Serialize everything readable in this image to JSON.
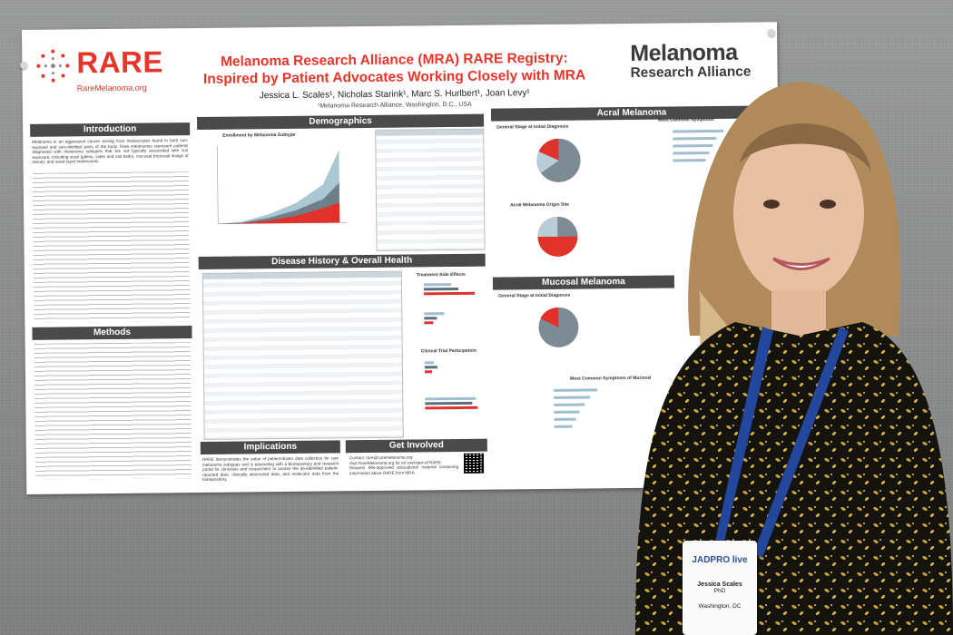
{
  "poster": {
    "logo_left": "RARE",
    "logo_left_url": "RareMelanoma.org",
    "title_line1": "Melanoma Research Alliance (MRA) RARE Registry:",
    "title_line2": "Inspired by Patient Advocates Working Closely with MRA",
    "authors": "Jessica L. Scales¹, Nicholas Starink¹, Marc S. Hurlbert¹, Joan Levy¹",
    "affiliation": "¹Melanoma Research Alliance, Washington, D.C., USA",
    "logo_right_line1": "Melanoma",
    "logo_right_line2": "Research Alliance",
    "sections": {
      "introduction": "Introduction",
      "methods": "Methods",
      "demographics": "Demographics",
      "disease_history": "Disease History & Overall Health",
      "implications": "Implications",
      "get_involved": "Get Involved",
      "acral": "Acral Melanoma",
      "mucosal": "Mucosal Melanoma"
    },
    "subheads": {
      "enrollment": "Enrollment by Melanoma Subtype",
      "treatment_side_effects": "Treatment Side Effects",
      "clinical_trial": "Clinical Trial Participation",
      "acral_stage": "General Stage at Initial Diagnosis",
      "acral_origin": "Acral Melanoma Origin Site",
      "acral_symptoms": "Most Common Symptoms",
      "mucosal_stage": "General Stage at Initial Diagnosis",
      "mucosal_symptoms": "Most Common Symptoms of Mucosal"
    },
    "intro_text": "Melanoma is an aggressive cancer arising from melanocytes found in both sun-exposed and sun-shielded parts of the body. Rare melanomas represent patients diagnosed with melanoma subtypes that are not typically associated with sun exposure, including acral (palms, soles and nail beds), mucosal (mucosal linings of tissue), and uveal (eye) melanomas.",
    "implications_text": "RARE demonstrates the value of patient-driven data collection for rare melanoma subtypes and is expanding with a biorepository and research portal for clinicians and researchers to access the de-identified patient-reported data, clinically abstracted data, and molecular data from the biorepository.",
    "get_involved_items": [
      "Contact: rare@curemelanoma.org",
      "Visit RareMelanoma.org for an overview of RARE.",
      "Request IRB-approved educational material containing information about RARE from MRA."
    ]
  },
  "badge": {
    "event": "JADPRO live",
    "name": "Jessica Scales",
    "credential": "PhD",
    "location": "Washington, DC"
  },
  "colors": {
    "accent_red": "#e8352b",
    "section_bar": "#4a4a4a",
    "chart_blue": "#9dbfcf",
    "chart_dark": "#5c6e7a"
  }
}
